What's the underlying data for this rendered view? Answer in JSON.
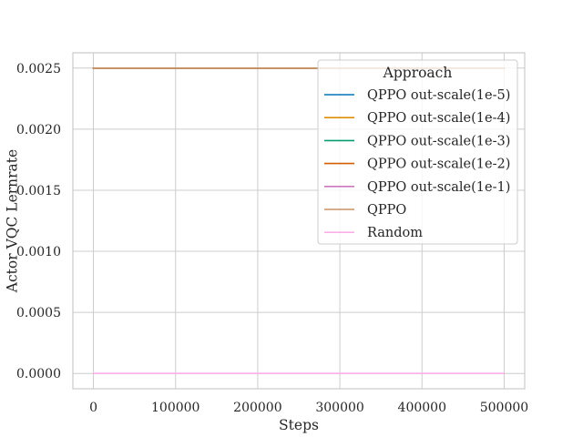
{
  "chart_data": {
    "type": "line",
    "title": "",
    "xlabel": "Steps",
    "ylabel": "Actor VQC Lernrate",
    "xlim": [
      -25000,
      525000
    ],
    "ylim": [
      -0.000125,
      0.002625
    ],
    "x_ticks": [
      0,
      100000,
      200000,
      300000,
      400000,
      500000
    ],
    "x_tick_labels": [
      "0",
      "100000",
      "200000",
      "300000",
      "400000",
      "500000"
    ],
    "y_ticks": [
      0.0,
      0.0005,
      0.001,
      0.0015,
      0.002,
      0.0025
    ],
    "y_tick_labels": [
      "0.0000",
      "0.0005",
      "0.0010",
      "0.0015",
      "0.0020",
      "0.0025"
    ],
    "grid": true,
    "legend": {
      "title": "Approach",
      "placement": "top-right"
    },
    "x": [
      0,
      500000
    ],
    "series": [
      {
        "name": "QPPO out-scale(1e-5)",
        "color": "#0173b2",
        "values": [
          0.0025,
          0.0025
        ]
      },
      {
        "name": "QPPO out-scale(1e-4)",
        "color": "#de8f05",
        "values": [
          0.0025,
          0.0025
        ]
      },
      {
        "name": "QPPO out-scale(1e-3)",
        "color": "#029e73",
        "values": [
          0.0025,
          0.0025
        ]
      },
      {
        "name": "QPPO out-scale(1e-2)",
        "color": "#d55e00",
        "values": [
          0.0025,
          0.0025
        ]
      },
      {
        "name": "QPPO out-scale(1e-1)",
        "color": "#cc78bc",
        "values": [
          0.0025,
          0.0025
        ]
      },
      {
        "name": "QPPO",
        "color": "#ca9161",
        "values": [
          0.0025,
          0.0025
        ]
      },
      {
        "name": "Random",
        "color": "#fbafe4",
        "values": [
          0.0,
          0.0
        ]
      }
    ]
  }
}
